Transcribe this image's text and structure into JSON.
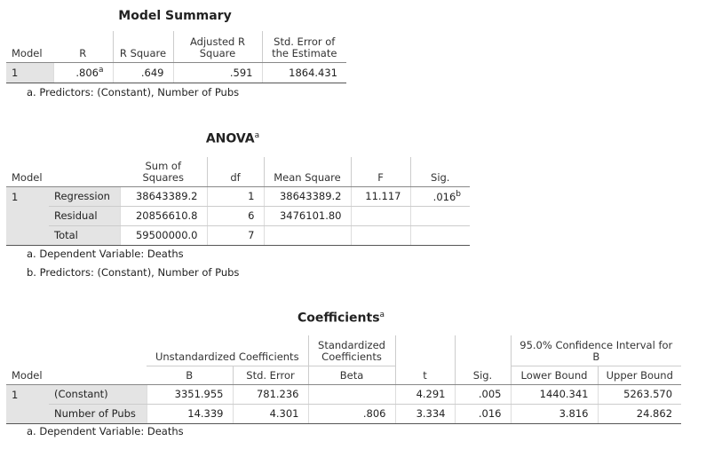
{
  "model_summary": {
    "title": "Model Summary",
    "columns": [
      [
        "Model"
      ],
      [
        "R"
      ],
      [
        "R Square"
      ],
      [
        "Adjusted R",
        "Square"
      ],
      [
        "Std. Error of",
        "the Estimate"
      ]
    ],
    "rows": [
      {
        "model": "1",
        "r": ".806",
        "r_note": "a",
        "r_square": ".649",
        "adjusted_r_square": ".591",
        "std_error": "1864.431"
      }
    ],
    "footnotes": [
      "a. Predictors: (Constant), Number of Pubs"
    ]
  },
  "anova": {
    "title": "ANOVA",
    "title_note": "a",
    "columns": [
      [
        "Model"
      ],
      [
        "Sum of",
        "Squares"
      ],
      [
        "df"
      ],
      [
        "Mean Square"
      ],
      [
        "F"
      ],
      [
        "Sig."
      ]
    ],
    "model": "1",
    "rows": [
      {
        "label": "Regression",
        "sum_of_squares": "38643389.2",
        "df": "1",
        "mean_square": "38643389.2",
        "f": "11.117",
        "sig": ".016",
        "sig_note": "b"
      },
      {
        "label": "Residual",
        "sum_of_squares": "20856610.8",
        "df": "6",
        "mean_square": "3476101.80"
      },
      {
        "label": "Total",
        "sum_of_squares": "59500000.0",
        "df": "7"
      }
    ],
    "footnotes": [
      "a. Dependent Variable: Deaths",
      "b. Predictors: (Constant), Number of Pubs"
    ]
  },
  "coefficients": {
    "title": "Coefficients",
    "title_note": "a",
    "column_groups": {
      "unstandardized": [
        "Unstandardized Coefficients"
      ],
      "standardized": [
        "Standardized",
        "Coefficients"
      ],
      "confidence_interval": [
        "95.0% Confidence Interval for",
        "B"
      ]
    },
    "columns": [
      "Model",
      "B",
      "Std. Error",
      "Beta",
      "t",
      "Sig.",
      "Lower Bound",
      "Upper Bound"
    ],
    "model": "1",
    "rows": [
      {
        "label": "(Constant)",
        "b": "3351.955",
        "std_error": "781.236",
        "t": "4.291",
        "sig": ".005",
        "lower": "1440.341",
        "upper": "5263.570"
      },
      {
        "label": "Number of Pubs",
        "b": "14.339",
        "std_error": "4.301",
        "beta": ".806",
        "t": "3.334",
        "sig": ".016",
        "lower": "3.816",
        "upper": "24.862"
      }
    ],
    "footnotes": [
      "a. Dependent Variable: Deaths"
    ]
  }
}
